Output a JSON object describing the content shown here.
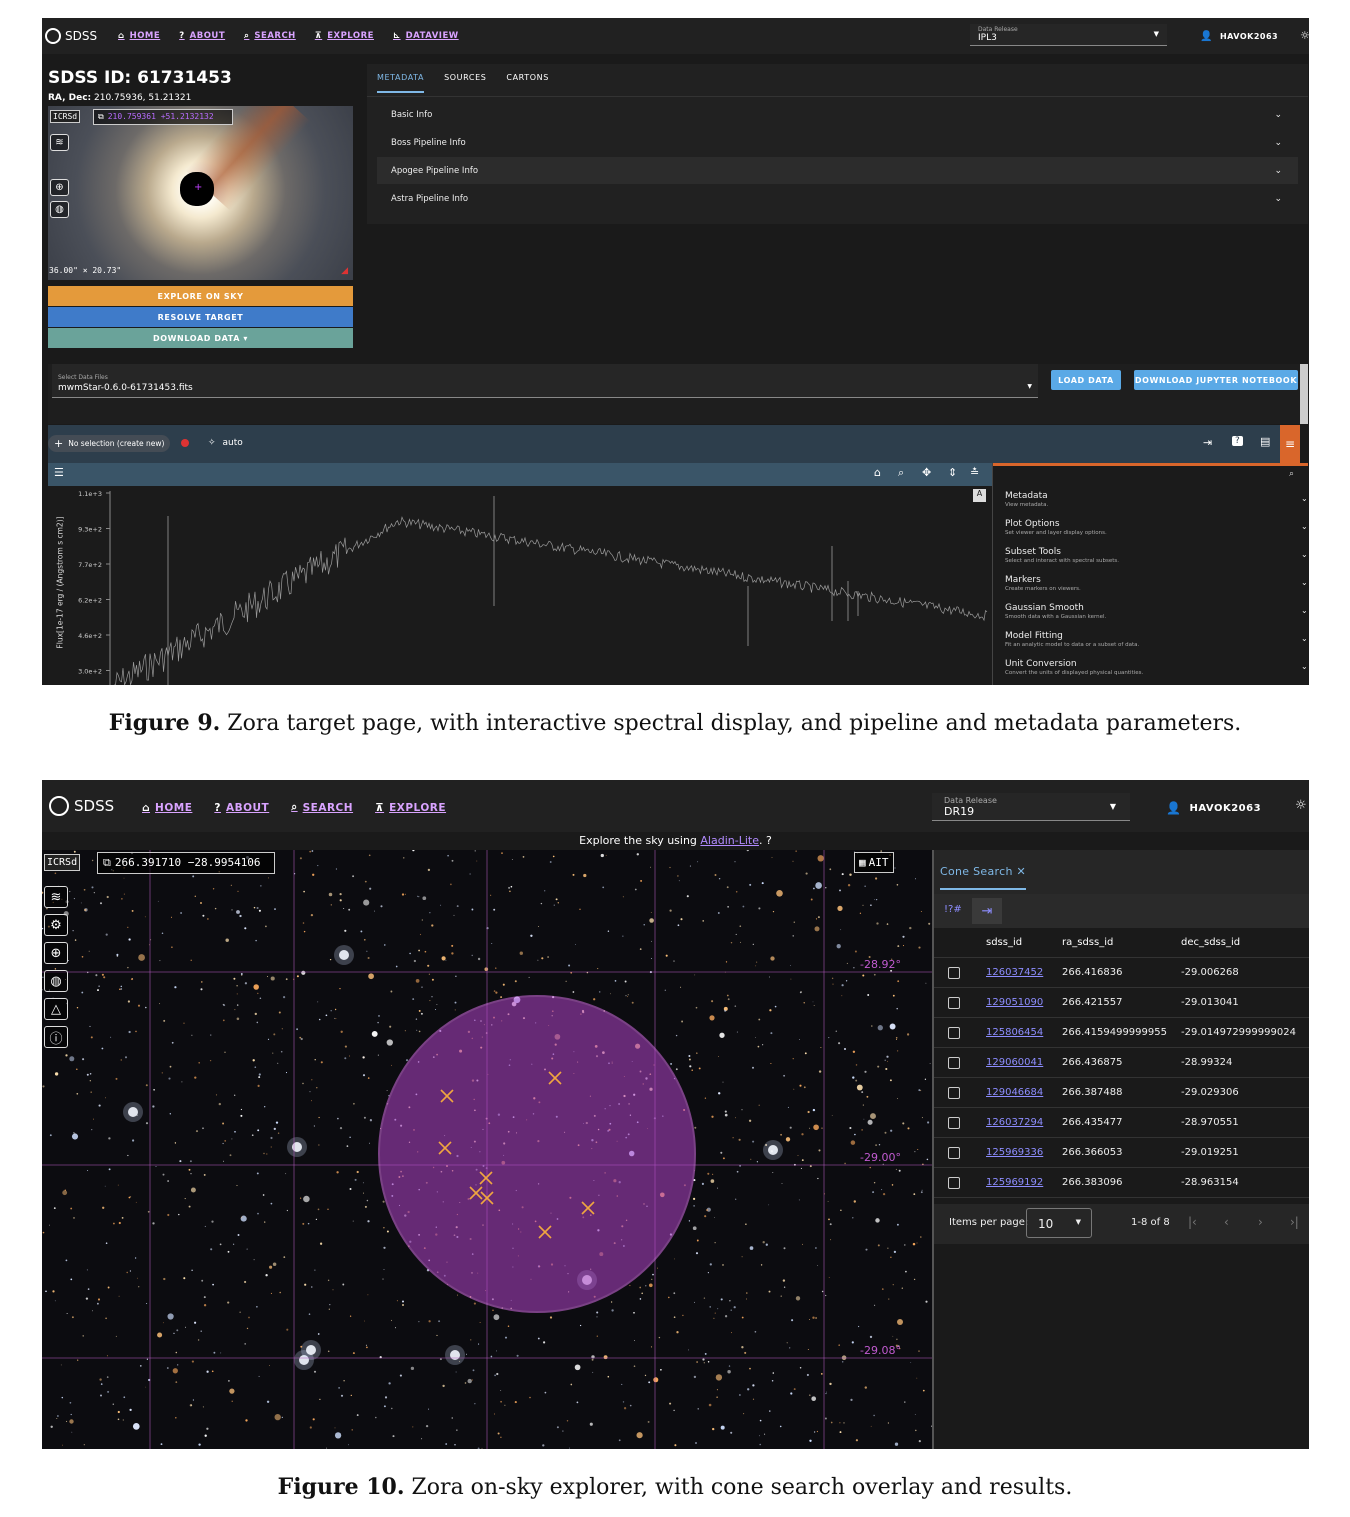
{
  "fig9": {
    "caption_label": "Figure 9.",
    "caption_text": " Zora target page, with interactive spectral display, and pipeline and metadata parameters.",
    "nav": {
      "brand": "SDSS",
      "links": [
        "HOME",
        "ABOUT",
        "SEARCH",
        "EXPLORE",
        "DATAVIEW"
      ],
      "data_release_label": "Data Release",
      "data_release_value": "IPL3",
      "user": "HAVOK2063"
    },
    "target": {
      "title": "SDSS ID: 61731453",
      "radec_label": "RA, Dec:",
      "radec_value": "210.75936, 51.21321",
      "frame": "ICRSd",
      "coords": "210.759361 +51.2132132",
      "fov": "36.00\" × 20.73\""
    },
    "buttons": {
      "explore": "EXPLORE ON SKY",
      "resolve": "RESOLVE TARGET",
      "download": "DOWNLOAD DATA ▾"
    },
    "tabs": [
      "METADATA",
      "SOURCES",
      "CARTONS"
    ],
    "accordion": [
      "Basic Info",
      "Boss Pipeline Info",
      "Apogee Pipeline Info",
      "Astra Pipeline Info"
    ],
    "files": {
      "label": "Select Data Files",
      "value": "mwmStar-0.6.0-61731453.fits",
      "load": "LOAD DATA",
      "notebook": "DOWNLOAD JUPYTER NOTEBOOK"
    },
    "viewer": {
      "selection": "No selection (create new)",
      "mode": "auto",
      "ylabel": "Flux[1e-17 erg / (Angstrom s cm2)]"
    },
    "plugins": [
      {
        "name": "Metadata",
        "desc": "View metadata."
      },
      {
        "name": "Plot Options",
        "desc": "Set viewer and layer display options."
      },
      {
        "name": "Subset Tools",
        "desc": "Select and interact with spectral subsets."
      },
      {
        "name": "Markers",
        "desc": "Create markers on viewers."
      },
      {
        "name": "Gaussian Smooth",
        "desc": "Smooth data with a Gaussian kernel."
      },
      {
        "name": "Model Fitting",
        "desc": "Fit an analytic model to data or a subset of data."
      },
      {
        "name": "Unit Conversion",
        "desc": "Convert the units of displayed physical quantities."
      }
    ],
    "chart_data": {
      "type": "line",
      "yticks": [
        "1.1e+3",
        "9.3e+2",
        "7.7e+2",
        "6.2e+2",
        "4.6e+2",
        "3.0e+2"
      ],
      "ylabel": "Flux[1e-17 erg / (Angstrom s cm2)]"
    }
  },
  "fig10": {
    "caption_label": "Figure 10.",
    "caption_text": " Zora on-sky explorer, with cone search overlay and results.",
    "nav": {
      "brand": "SDSS",
      "links": [
        "HOME",
        "ABOUT",
        "SEARCH",
        "EXPLORE"
      ],
      "data_release_label": "Data Release",
      "data_release_value": "DR19",
      "user": "HAVOK2063"
    },
    "hint_prefix": "Explore the sky using ",
    "hint_link": "Aladin-Lite",
    "hint_suffix": ".  ?",
    "frame": "ICRSd",
    "coords": "266.391710 −28.9954106",
    "projection": "AIT",
    "grid_labels": [
      "-28.92°",
      "-29.00°",
      "-29.08°"
    ],
    "panel_tab": "Cone Search ✕",
    "toolbar_label": "!?#",
    "columns": [
      "sdss_id",
      "ra_sdss_id",
      "dec_sdss_id"
    ],
    "rows": [
      [
        "126037452",
        "266.416836",
        "-29.006268"
      ],
      [
        "129051090",
        "266.421557",
        "-29.013041"
      ],
      [
        "125806454",
        "266.4159499999955",
        "-29.014972999999024"
      ],
      [
        "129060041",
        "266.436875",
        "-28.99324"
      ],
      [
        "129046684",
        "266.387488",
        "-29.029306"
      ],
      [
        "126037294",
        "266.435477",
        "-28.970551"
      ],
      [
        "125969336",
        "266.366053",
        "-29.019251"
      ],
      [
        "125969192",
        "266.383096",
        "-28.963154"
      ]
    ],
    "pagination": {
      "label": "Items per page:",
      "value": "10",
      "range": "1-8 of 8"
    }
  }
}
